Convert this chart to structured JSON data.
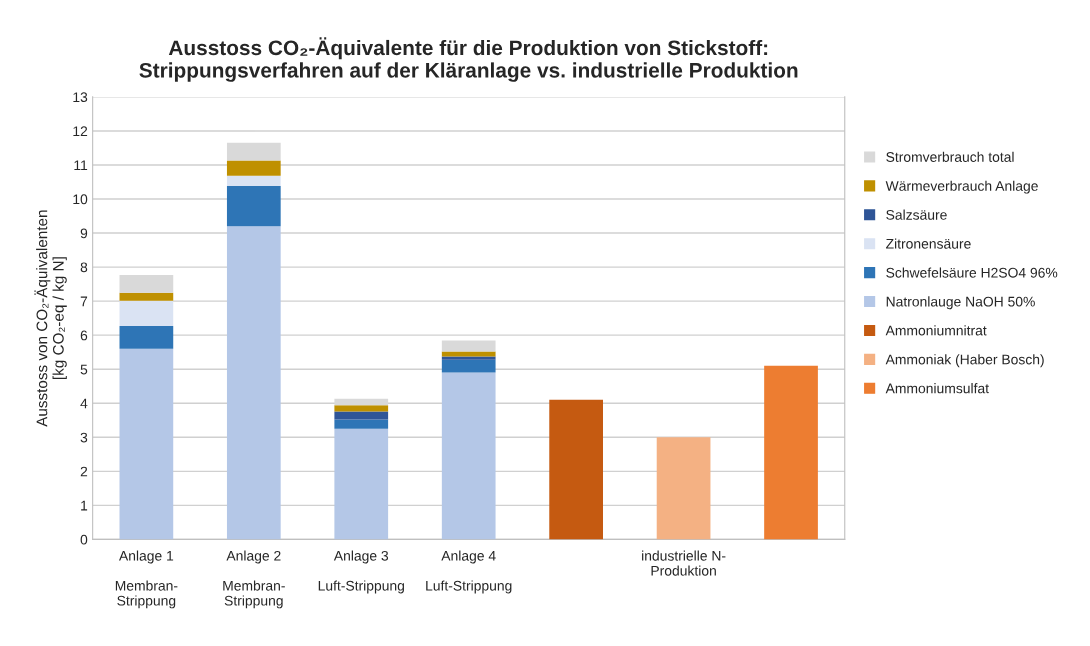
{
  "chart_data": {
    "type": "bar",
    "stacked": true,
    "title": "Ausstoss CO₂-Äquivalente für die Produktion von Stickstoff:\nStrippungsverfahren auf der Kläranlage vs. industrielle Produktion",
    "ylabel": "Ausstoss von CO₂-Äquivalenten\n[kg CO₂-eq / kg N]",
    "categories": [
      "Anlage 1\n\nMembran-\nStrippung",
      "Anlage 2\n\nMembran-\nStrippung",
      "Anlage 3\n\nLuft-Strippung",
      "Anlage 4\n\nLuft-Strippung",
      null,
      "industrielle N-\nProduktion",
      null
    ],
    "series": [
      {
        "name": "Natronlauge NaOH 50%",
        "color": "#b4c7e7",
        "values": [
          5.6,
          9.2,
          3.25,
          4.9,
          null,
          null,
          null
        ]
      },
      {
        "name": "Schwefelsäure H2SO4 96%",
        "color": "#2e75b6",
        "values": [
          0.67,
          1.18,
          0.27,
          0.38,
          null,
          null,
          null
        ]
      },
      {
        "name": "Zitronensäure",
        "color": "#dae3f3",
        "values": [
          0.74,
          0.3,
          null,
          null,
          null,
          null,
          null
        ]
      },
      {
        "name": "Salzsäure",
        "color": "#2f5597",
        "values": [
          null,
          null,
          0.24,
          0.09,
          null,
          null,
          null
        ]
      },
      {
        "name": "Wärmeverbrauch Anlage",
        "color": "#bf9000",
        "values": [
          0.24,
          0.45,
          0.18,
          0.15,
          null,
          null,
          null
        ]
      },
      {
        "name": "Stromverbrauch total",
        "color": "#d9d9d9",
        "values": [
          0.52,
          0.52,
          0.19,
          0.32,
          null,
          null,
          null
        ]
      },
      {
        "name": "Ammoniumnitrat",
        "color": "#c55a11",
        "values": [
          null,
          null,
          null,
          null,
          4.1,
          null,
          null
        ]
      },
      {
        "name": "Ammoniak (Haber Bosch)",
        "color": "#f4b183",
        "values": [
          null,
          null,
          null,
          null,
          null,
          3.0,
          null
        ]
      },
      {
        "name": "Ammoniumsulfat",
        "color": "#ed7d31",
        "values": [
          null,
          null,
          null,
          null,
          null,
          null,
          5.1
        ]
      }
    ],
    "ylim": [
      0,
      13
    ],
    "yticks": [
      0,
      1,
      2,
      3,
      4,
      5,
      6,
      7,
      8,
      9,
      10,
      11,
      12,
      13
    ],
    "grid": "y",
    "legend": "right"
  }
}
